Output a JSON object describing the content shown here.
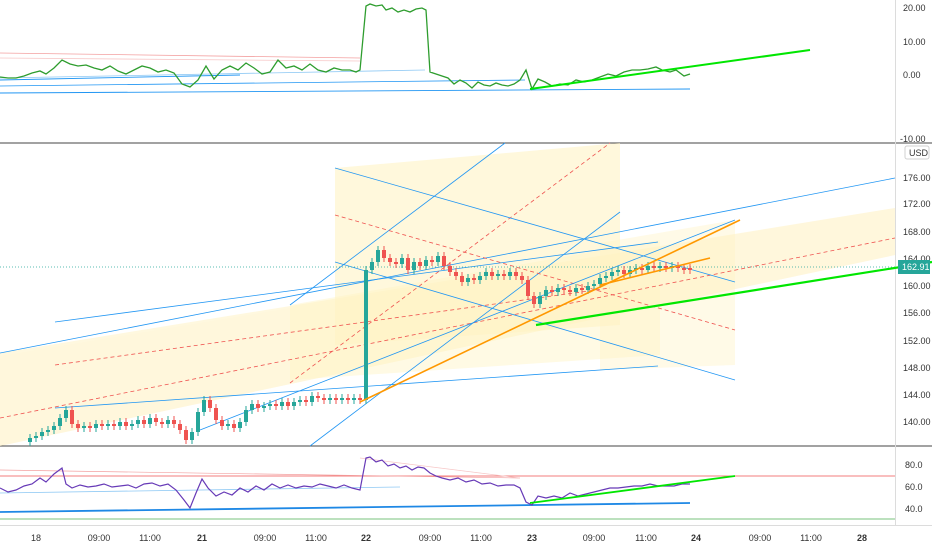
{
  "currency": {
    "label": "USD"
  },
  "price_badge": {
    "value": "162.91",
    "color": "#26a69a"
  },
  "top_panel": {
    "ticks": [
      "20.00",
      "10.00",
      "0.00",
      "-10.00"
    ]
  },
  "main_panel": {
    "ticks": [
      "176.00",
      "172.00",
      "168.00",
      "164.00",
      "160.00",
      "156.00",
      "152.00",
      "148.00",
      "144.00",
      "140.00"
    ]
  },
  "rsi_panel": {
    "ticks": [
      "80.0",
      "60.0",
      "40.0"
    ]
  },
  "time_axis": {
    "labels": [
      {
        "text": "18",
        "bold": false
      },
      {
        "text": "09:00",
        "bold": false
      },
      {
        "text": "11:00",
        "bold": false
      },
      {
        "text": "21",
        "bold": true
      },
      {
        "text": "09:00",
        "bold": false
      },
      {
        "text": "11:00",
        "bold": false
      },
      {
        "text": "22",
        "bold": true
      },
      {
        "text": "09:00",
        "bold": false
      },
      {
        "text": "11:00",
        "bold": false
      },
      {
        "text": "23",
        "bold": true
      },
      {
        "text": "09:00",
        "bold": false
      },
      {
        "text": "11:00",
        "bold": false
      },
      {
        "text": "24",
        "bold": true
      },
      {
        "text": "09:00",
        "bold": false
      },
      {
        "text": "11:00",
        "bold": false
      },
      {
        "text": "28",
        "bold": true
      }
    ]
  },
  "colors": {
    "up": "#26a69a",
    "down": "#ef5350",
    "channel": "#2196f3",
    "trend_green": "#00e600",
    "trend_orange": "#ff9800",
    "rsi_line": "#673ab7",
    "osc_line": "#2e9d2e",
    "fill": "#fff3c4"
  }
}
